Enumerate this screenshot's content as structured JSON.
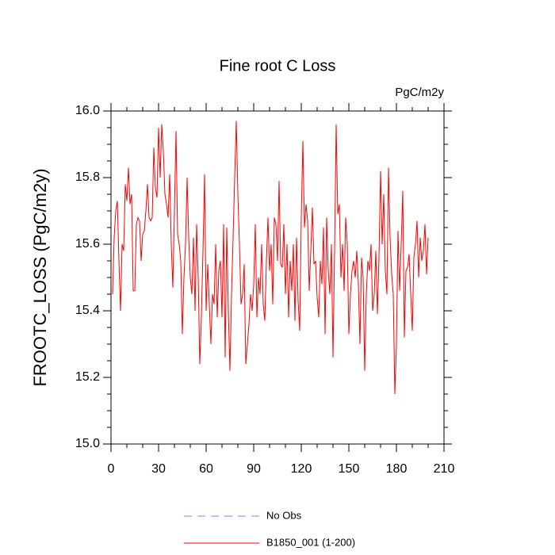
{
  "chart_data": {
    "type": "line",
    "title": "Fine root C Loss",
    "units": "PgC/m2y",
    "y_label": "FROOTC_LOSS  (PgC/m2y)",
    "x": [
      1,
      2,
      3,
      4,
      5,
      6,
      7,
      8,
      9,
      10,
      11,
      12,
      13,
      14,
      15,
      16,
      17,
      18,
      19,
      20,
      21,
      22,
      23,
      24,
      25,
      26,
      27,
      28,
      29,
      30,
      31,
      32,
      33,
      34,
      35,
      36,
      37,
      38,
      39,
      40,
      41,
      42,
      43,
      44,
      45,
      46,
      47,
      48,
      49,
      50,
      51,
      52,
      53,
      54,
      55,
      56,
      57,
      58,
      59,
      60,
      61,
      62,
      63,
      64,
      65,
      66,
      67,
      68,
      69,
      70,
      71,
      72,
      73,
      74,
      75,
      76,
      77,
      78,
      79,
      80,
      81,
      82,
      83,
      84,
      85,
      86,
      87,
      88,
      89,
      90,
      91,
      92,
      93,
      94,
      95,
      96,
      97,
      98,
      99,
      100,
      101,
      102,
      103,
      104,
      105,
      106,
      107,
      108,
      109,
      110,
      111,
      112,
      113,
      114,
      115,
      116,
      117,
      118,
      119,
      120,
      121,
      122,
      123,
      124,
      125,
      126,
      127,
      128,
      129,
      130,
      131,
      132,
      133,
      134,
      135,
      136,
      137,
      138,
      139,
      140,
      141,
      142,
      143,
      144,
      145,
      146,
      147,
      148,
      149,
      150,
      151,
      152,
      153,
      154,
      155,
      156,
      157,
      158,
      159,
      160,
      161,
      162,
      163,
      164,
      165,
      166,
      167,
      168,
      169,
      170,
      171,
      172,
      173,
      174,
      175,
      176,
      177,
      178,
      179,
      180,
      181,
      182,
      183,
      184,
      185,
      186,
      187,
      188,
      189,
      190,
      191,
      192,
      193,
      194,
      195,
      196,
      197,
      198,
      199,
      200
    ],
    "series": [
      {
        "name": "B1850_001 (1-200)",
        "color": "#ff0000",
        "values": [
          15.45,
          15.62,
          15.7,
          15.73,
          15.55,
          15.4,
          15.6,
          15.58,
          15.78,
          15.73,
          15.83,
          15.72,
          15.75,
          15.46,
          15.46,
          15.66,
          15.68,
          15.67,
          15.55,
          15.63,
          15.64,
          15.7,
          15.78,
          15.68,
          15.67,
          15.68,
          15.89,
          15.77,
          15.74,
          15.95,
          15.8,
          15.96,
          15.88,
          15.75,
          15.72,
          15.68,
          15.81,
          15.6,
          15.47,
          15.7,
          15.94,
          15.63,
          15.6,
          15.55,
          15.33,
          15.5,
          15.6,
          15.8,
          15.62,
          15.5,
          15.45,
          15.62,
          15.4,
          15.66,
          15.5,
          15.24,
          15.38,
          15.58,
          15.81,
          15.4,
          15.54,
          15.42,
          15.3,
          15.45,
          15.42,
          15.6,
          15.38,
          15.52,
          15.55,
          15.38,
          15.66,
          15.26,
          15.65,
          15.4,
          15.22,
          15.45,
          15.62,
          15.8,
          15.97,
          15.75,
          15.6,
          15.42,
          15.45,
          15.54,
          15.24,
          15.3,
          15.36,
          15.45,
          15.4,
          15.48,
          15.66,
          15.38,
          15.5,
          15.45,
          15.6,
          15.42,
          15.37,
          15.55,
          15.68,
          15.52,
          15.6,
          15.42,
          15.68,
          15.66,
          15.55,
          15.79,
          15.54,
          15.53,
          15.66,
          15.45,
          15.6,
          15.38,
          15.55,
          15.46,
          15.6,
          15.37,
          15.62,
          15.43,
          15.34,
          15.68,
          15.91,
          15.65,
          15.72,
          15.67,
          15.46,
          15.58,
          15.71,
          15.54,
          15.55,
          15.44,
          15.38,
          15.55,
          15.48,
          15.65,
          15.33,
          15.68,
          15.52,
          15.45,
          15.6,
          15.26,
          15.58,
          15.96,
          15.69,
          15.72,
          15.5,
          15.6,
          15.46,
          15.68,
          15.6,
          15.33,
          15.45,
          15.52,
          15.55,
          15.5,
          15.58,
          15.48,
          15.3,
          15.56,
          15.5,
          15.22,
          15.45,
          15.55,
          15.52,
          15.6,
          15.4,
          15.45,
          15.58,
          15.39,
          15.56,
          15.82,
          15.6,
          15.75,
          15.52,
          15.45,
          15.83,
          15.62,
          15.51,
          15.45,
          15.15,
          15.3,
          15.64,
          15.46,
          15.6,
          15.76,
          15.32,
          15.52,
          15.53,
          15.57,
          15.45,
          15.34,
          15.56,
          15.6,
          15.67,
          15.5,
          15.62,
          15.55,
          15.58,
          15.66,
          15.51,
          15.62
        ]
      }
    ],
    "reference": {
      "name": "No Obs",
      "color": "#8080ff",
      "dashed": true
    },
    "xlim": [
      0,
      210
    ],
    "xticks": [
      0,
      30,
      60,
      90,
      120,
      150,
      180,
      210
    ],
    "ylim": [
      15.0,
      16.0
    ],
    "yticks": [
      {
        "value": 15.0,
        "label": "15.0"
      },
      {
        "value": 15.2,
        "label": "15.2"
      },
      {
        "value": 15.4,
        "label": "15.4"
      },
      {
        "value": 15.6,
        "label": "15.6"
      },
      {
        "value": 15.8,
        "label": "15.8"
      },
      {
        "value": 16.0,
        "label": "16.0"
      }
    ],
    "grid": false
  }
}
